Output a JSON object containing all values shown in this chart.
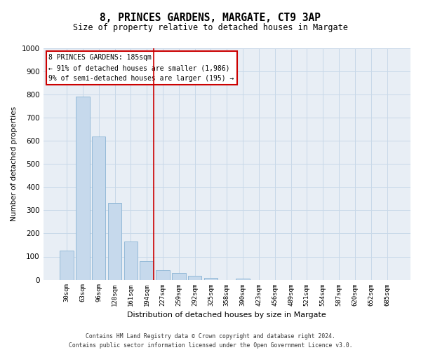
{
  "title": "8, PRINCES GARDENS, MARGATE, CT9 3AP",
  "subtitle": "Size of property relative to detached houses in Margate",
  "xlabel": "Distribution of detached houses by size in Margate",
  "ylabel": "Number of detached properties",
  "footer_line1": "Contains HM Land Registry data © Crown copyright and database right 2024.",
  "footer_line2": "Contains public sector information licensed under the Open Government Licence v3.0.",
  "bar_labels": [
    "30sqm",
    "63sqm",
    "96sqm",
    "128sqm",
    "161sqm",
    "194sqm",
    "227sqm",
    "259sqm",
    "292sqm",
    "325sqm",
    "358sqm",
    "390sqm",
    "423sqm",
    "456sqm",
    "489sqm",
    "521sqm",
    "554sqm",
    "587sqm",
    "620sqm",
    "652sqm",
    "685sqm"
  ],
  "bar_values": [
    125,
    790,
    620,
    330,
    165,
    80,
    42,
    28,
    18,
    8,
    0,
    5,
    0,
    0,
    0,
    0,
    0,
    0,
    0,
    0,
    0
  ],
  "bar_color": "#c6d9ec",
  "bar_edge_color": "#8ab4d4",
  "grid_color": "#c8d8e8",
  "background_color": "#e8eef5",
  "vline_x": 5.45,
  "vline_color": "#cc0000",
  "annotation_title": "8 PRINCES GARDENS: 185sqm",
  "annotation_line1": "← 91% of detached houses are smaller (1,986)",
  "annotation_line2": "9% of semi-detached houses are larger (195) →",
  "ylim": [
    0,
    1000
  ],
  "yticks": [
    0,
    100,
    200,
    300,
    400,
    500,
    600,
    700,
    800,
    900,
    1000
  ],
  "title_fontsize": 10.5,
  "subtitle_fontsize": 8.5
}
